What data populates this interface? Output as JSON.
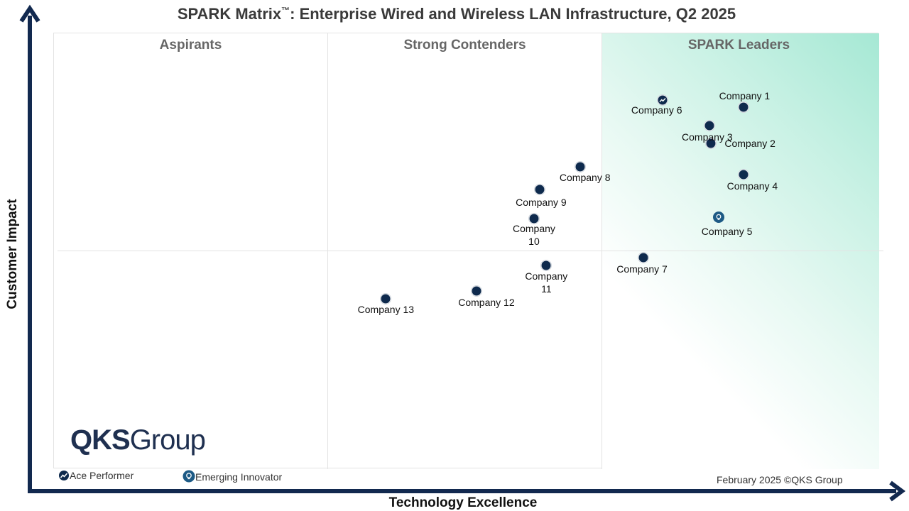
{
  "title_main": "SPARK Matrix",
  "title_tm": "™",
  "title_rest": ": Enterprise Wired and Wireless LAN Infrastructure, Q2 2025",
  "quadrants": {
    "aspirants": "Aspirants",
    "contenders": "Strong Contenders",
    "leaders": "SPARK Leaders"
  },
  "logo": {
    "bold": "QKS",
    "light": "Group"
  },
  "legend": {
    "ace": "Ace Performer",
    "innovator": "Emerging Innovator"
  },
  "footer": "February 2025 ©QKS Group",
  "colors": {
    "marker": "#0e2a4d",
    "axis": "#12294f",
    "leader_gradient": "#a5e8d4"
  },
  "chart_data": {
    "type": "scatter",
    "title": "SPARK Matrix™: Enterprise Wired and Wireless LAN Infrastructure, Q2 2025",
    "xlabel": "Technology Excellence",
    "ylabel": "Customer Impact",
    "grid": false,
    "points": [
      {
        "name": "Company 1",
        "x": 8.35,
        "y": 8.31,
        "marker": "dot"
      },
      {
        "name": "Company 2",
        "x": 7.96,
        "y": 7.49,
        "marker": "dot"
      },
      {
        "name": "Company 3",
        "x": 7.94,
        "y": 7.89,
        "marker": "dot"
      },
      {
        "name": "Company 4",
        "x": 8.35,
        "y": 6.77,
        "marker": "dot"
      },
      {
        "name": "Company 5",
        "x": 8.05,
        "y": 5.79,
        "marker": "innovator"
      },
      {
        "name": "Company 6",
        "x": 7.37,
        "y": 8.48,
        "marker": "ace"
      },
      {
        "name": "Company 7",
        "x": 7.14,
        "y": 4.86,
        "marker": "dot"
      },
      {
        "name": "Company 8",
        "x": 6.37,
        "y": 6.95,
        "marker": "dot"
      },
      {
        "name": "Company 9",
        "x": 5.88,
        "y": 6.42,
        "marker": "dot"
      },
      {
        "name": "Company 10",
        "x": 5.81,
        "y": 5.75,
        "marker": "dot"
      },
      {
        "name": "Company 11",
        "x": 5.96,
        "y": 4.67,
        "marker": "dot"
      },
      {
        "name": "Company 12",
        "x": 5.11,
        "y": 4.08,
        "marker": "dot"
      },
      {
        "name": "Company 13",
        "x": 4.01,
        "y": 3.9,
        "marker": "dot"
      }
    ]
  }
}
